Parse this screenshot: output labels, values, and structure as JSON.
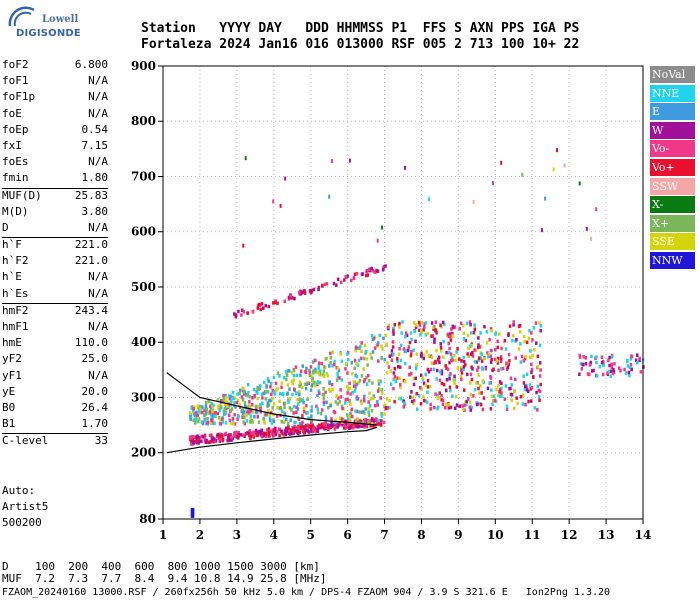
{
  "logo": {
    "line1": "Lowell",
    "line2": "DIGISONDE"
  },
  "header": {
    "line1": "Station   YYYY DAY   DDD HHMMSS P1  FFS S AXN PPS IGA PS",
    "line2": "Fortaleza 2024 Jan16 016 013000 RSF 005 2 713 100 10+ 22"
  },
  "params": [
    {
      "key": "foF2",
      "value": "6.800"
    },
    {
      "key": "foF1",
      "value": "N/A"
    },
    {
      "key": "foF1p",
      "value": "N/A"
    },
    {
      "key": "foE",
      "value": "N/A"
    },
    {
      "key": "foEp",
      "value": "0.54"
    },
    {
      "key": "fxI",
      "value": "7.15"
    },
    {
      "key": "foEs",
      "value": "N/A"
    },
    {
      "key": "fmin",
      "value": "1.80"
    },
    {
      "key": "MUF(D)",
      "value": "25.83"
    },
    {
      "key": "M(D)",
      "value": "3.80"
    },
    {
      "key": "D",
      "value": "N/A"
    },
    {
      "key": "h`F",
      "value": "221.0"
    },
    {
      "key": "h`F2",
      "value": "221.0"
    },
    {
      "key": "h`E",
      "value": "N/A"
    },
    {
      "key": "h`Es",
      "value": "N/A"
    },
    {
      "key": "hmF2",
      "value": "243.4"
    },
    {
      "key": "hmF1",
      "value": "N/A"
    },
    {
      "key": "hmE",
      "value": "110.0"
    },
    {
      "key": "yF2",
      "value": "25.0"
    },
    {
      "key": "yF1",
      "value": "N/A"
    },
    {
      "key": "yE",
      "value": "20.0"
    },
    {
      "key": "B0",
      "value": "26.4"
    },
    {
      "key": "B1",
      "value": "1.70"
    },
    {
      "key": "C-level",
      "value": "33"
    }
  ],
  "auto": {
    "line1": "Auto:",
    "line2": "Artist5",
    "line3": "500200"
  },
  "footer": {
    "line1": "D    100  200  400  600  800 1000 1500 3000 [km]",
    "line2": "MUF  7.2  7.3  7.7  8.4  9.4 10.8 14.9 25.8 [MHz]",
    "line3": "FZAOM_20240160 13000.RSF / 260fx256h 50 kHz 5.0 km / DPS-4 FZAOM 904 / 3.9 S 321.6 E   Ion2Png 1.3.20"
  },
  "legend": [
    {
      "label": "NoVal",
      "color": "#8c8c8c"
    },
    {
      "label": "NNE",
      "color": "#22d3ee"
    },
    {
      "label": "E",
      "color": "#3f9ae0"
    },
    {
      "label": "W",
      "color": "#a0109a"
    },
    {
      "label": "Vo-",
      "color": "#f0388a"
    },
    {
      "label": "Vo+",
      "color": "#e8102e"
    },
    {
      "label": "SSW",
      "color": "#f5a6a6"
    },
    {
      "label": "X-",
      "color": "#0a7a12"
    },
    {
      "label": "X+",
      "color": "#7bb65a"
    },
    {
      "label": "SSE",
      "color": "#d4d40c"
    },
    {
      "label": "NNW",
      "color": "#2016d8"
    }
  ],
  "chart_data": {
    "type": "scatter",
    "title": "",
    "xlabel": "",
    "ylabel": "",
    "xlim": [
      1,
      14
    ],
    "ylim": [
      80,
      900
    ],
    "x_ticks": [
      1,
      2,
      3,
      4,
      5,
      6,
      7,
      8,
      9,
      10,
      11,
      12,
      13,
      14
    ],
    "y_ticks": [
      80,
      200,
      300,
      400,
      500,
      600,
      700,
      800,
      900
    ],
    "grid": true,
    "clusters": [
      {
        "name": "F trace",
        "x": [
          1.7,
          6.9
        ],
        "y": [
          225,
          260
        ],
        "colors": [
          "Vo+",
          "W",
          "Vo-"
        ]
      },
      {
        "name": "F spread",
        "x": [
          1.7,
          7.0
        ],
        "y": [
          255,
          420
        ],
        "colors": [
          "SSE",
          "NNE",
          "E",
          "X+",
          "Vo-"
        ]
      },
      {
        "name": "F2 second hop",
        "x": [
          2.8,
          7.0
        ],
        "y": [
          450,
          540
        ],
        "colors": [
          "Vo+",
          "W",
          "Vo-"
        ]
      },
      {
        "name": "Oblique band",
        "x": [
          7.0,
          11.2
        ],
        "y": [
          280,
          440
        ],
        "colors": [
          "Vo+",
          "W",
          "SSE",
          "Vo-",
          "NNE"
        ]
      },
      {
        "name": "High echoes",
        "x": [
          12.2,
          14.0
        ],
        "y": [
          340,
          380
        ],
        "colors": [
          "NNE",
          "W",
          "Vo-"
        ]
      }
    ],
    "model_curve": {
      "lower_x": [
        1.1,
        2.0,
        3.0,
        4.0,
        5.0,
        6.0,
        6.5,
        6.8
      ],
      "lower_y": [
        200,
        210,
        218,
        225,
        232,
        238,
        240,
        246
      ],
      "upper_x": [
        1.1,
        1.5,
        2.0,
        3.0,
        4.0,
        5.0,
        6.0,
        6.8
      ],
      "upper_y": [
        345,
        325,
        300,
        285,
        270,
        260,
        255,
        250
      ]
    },
    "range_marker": {
      "x": [
        1.75,
        1.85
      ],
      "y": [
        82,
        100
      ]
    }
  }
}
